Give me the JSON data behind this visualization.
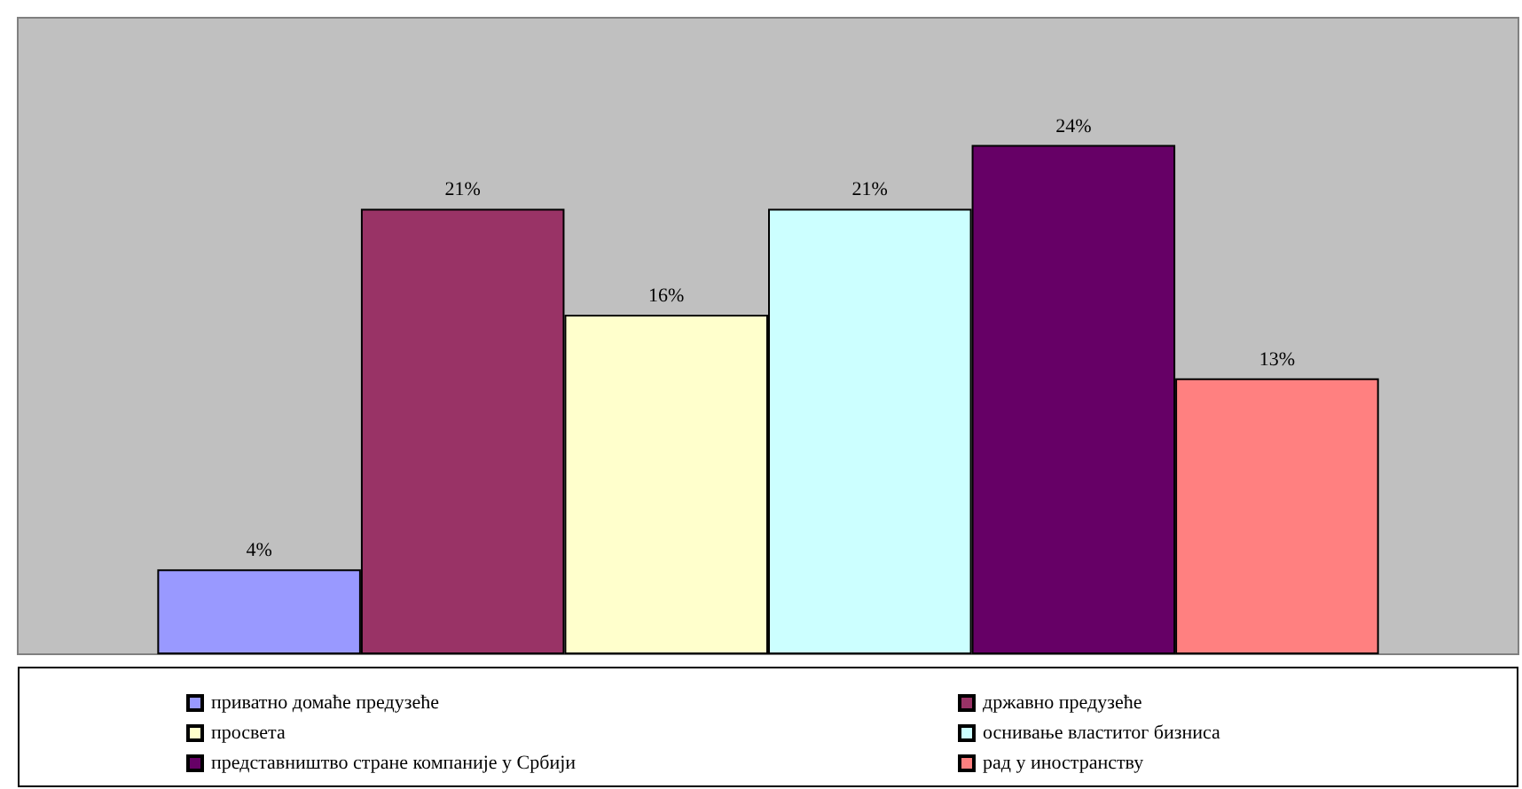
{
  "chart_data": {
    "type": "bar",
    "categories": [
      null
    ],
    "ylim": [
      0,
      30
    ],
    "grid": false,
    "legend": "bottom",
    "series": [
      {
        "name": "приватно домаће предузеће",
        "color": "#9999ff",
        "values": [
          4
        ],
        "value_labels": [
          "4%"
        ]
      },
      {
        "name": "државно предузеће",
        "color": "#993366",
        "values": [
          21
        ],
        "value_labels": [
          "21%"
        ]
      },
      {
        "name": "просвета",
        "color": "#ffffcc",
        "values": [
          16
        ],
        "value_labels": [
          "16%"
        ]
      },
      {
        "name": "оснивање властитог бизниса",
        "color": "#ccffff",
        "values": [
          21
        ],
        "value_labels": [
          "21%"
        ]
      },
      {
        "name": "представништво стране компаније у Србији",
        "color": "#660066",
        "values": [
          24
        ],
        "value_labels": [
          "24%"
        ]
      },
      {
        "name": "рад у иностранству",
        "color": "#ff8080",
        "values": [
          13
        ],
        "value_labels": [
          "13%"
        ]
      }
    ]
  }
}
